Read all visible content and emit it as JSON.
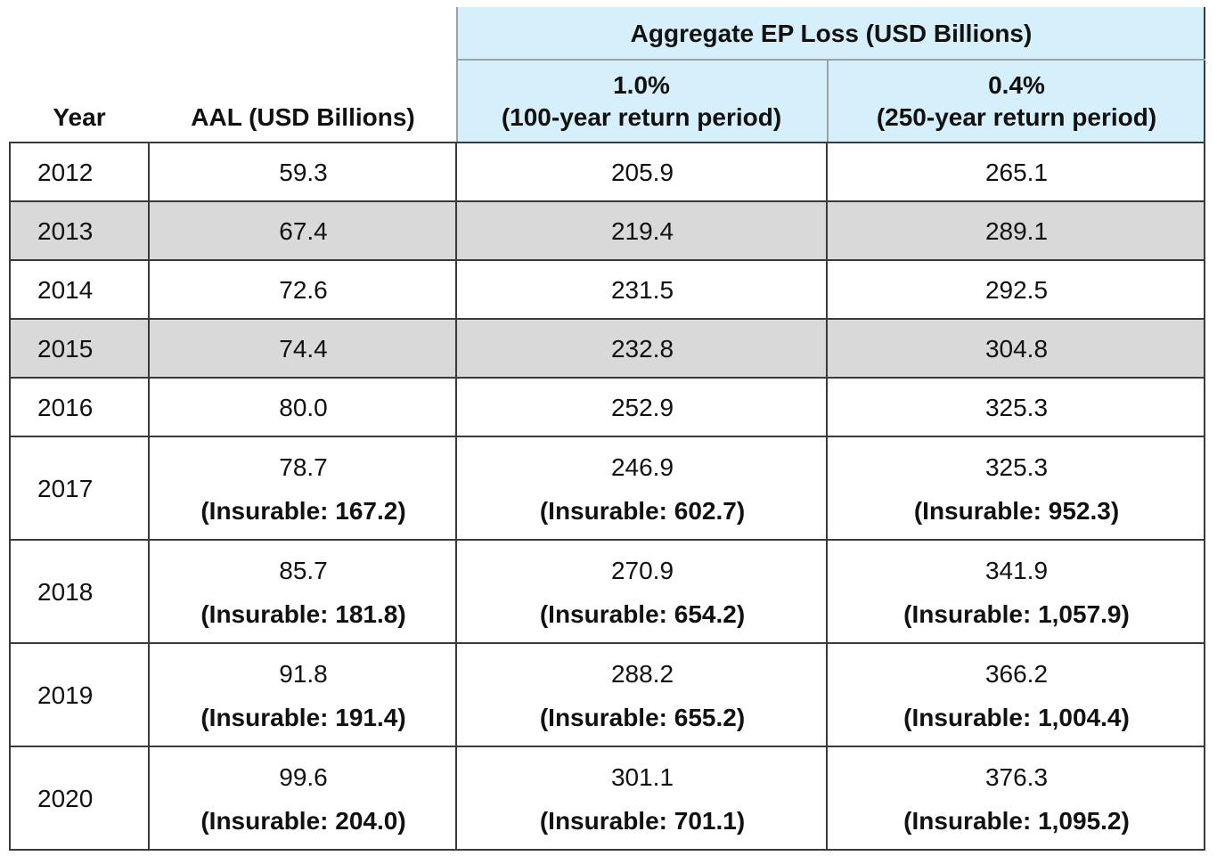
{
  "table": {
    "group_header": "Aggregate EP Loss (USD Billions)",
    "columns": [
      {
        "label": "Year"
      },
      {
        "label": "AAL (USD Billions)"
      },
      {
        "label": "1.0%",
        "sublabel": "(100-year return period)"
      },
      {
        "label": "0.4%",
        "sublabel": "(250-year return period)"
      }
    ],
    "rows": [
      {
        "year": "2012",
        "shaded": false,
        "cells": [
          {
            "value": "59.3"
          },
          {
            "value": "205.9"
          },
          {
            "value": "265.1"
          }
        ]
      },
      {
        "year": "2013",
        "shaded": true,
        "cells": [
          {
            "value": "67.4"
          },
          {
            "value": "219.4"
          },
          {
            "value": "289.1"
          }
        ]
      },
      {
        "year": "2014",
        "shaded": false,
        "cells": [
          {
            "value": "72.6"
          },
          {
            "value": "231.5"
          },
          {
            "value": "292.5"
          }
        ]
      },
      {
        "year": "2015",
        "shaded": true,
        "cells": [
          {
            "value": "74.4"
          },
          {
            "value": "232.8"
          },
          {
            "value": "304.8"
          }
        ]
      },
      {
        "year": "2016",
        "shaded": false,
        "cells": [
          {
            "value": "80.0"
          },
          {
            "value": "252.9"
          },
          {
            "value": "325.3"
          }
        ]
      },
      {
        "year": "2017",
        "shaded": false,
        "cells": [
          {
            "value": "78.7",
            "note": "(Insurable: 167.2)"
          },
          {
            "value": "246.9",
            "note": "(Insurable: 602.7)"
          },
          {
            "value": "325.3",
            "note": "(Insurable: 952.3)"
          }
        ]
      },
      {
        "year": "2018",
        "shaded": false,
        "cells": [
          {
            "value": "85.7",
            "note": "(Insurable: 181.8)"
          },
          {
            "value": "270.9",
            "note": "(Insurable: 654.2)"
          },
          {
            "value": "341.9",
            "note": "(Insurable: 1,057.9)"
          }
        ]
      },
      {
        "year": "2019",
        "shaded": false,
        "cells": [
          {
            "value": "91.8",
            "note": "(Insurable: 191.4)"
          },
          {
            "value": "288.2",
            "note": "(Insurable: 655.2)"
          },
          {
            "value": "366.2",
            "note": "(Insurable: 1,004.4)"
          }
        ]
      },
      {
        "year": "2020",
        "shaded": false,
        "cells": [
          {
            "value": "99.6",
            "note": "(Insurable: 204.0)"
          },
          {
            "value": "301.1",
            "note": "(Insurable: 701.1)"
          },
          {
            "value": "376.3",
            "note": "(Insurable: 1,095.2)"
          }
        ]
      }
    ]
  }
}
